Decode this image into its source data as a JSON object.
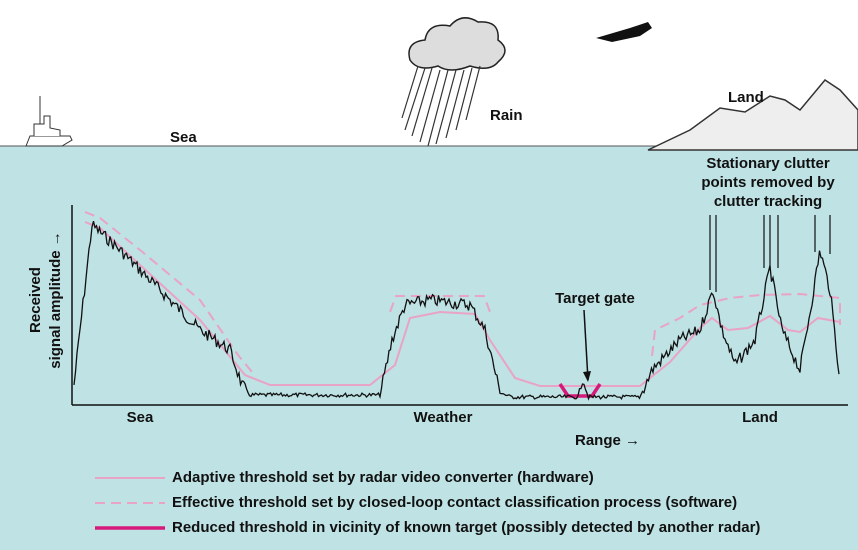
{
  "scene": {
    "sea_label": "Sea",
    "rain_label": "Rain",
    "land_label": "Land"
  },
  "annotations": {
    "clutter_note": [
      "Stationary clutter",
      "points removed by",
      "clutter tracking"
    ],
    "target_gate": "Target gate"
  },
  "axes": {
    "y_label": [
      "Received",
      "signal amplitude →"
    ],
    "x_label": "Range →",
    "regions": [
      "Sea",
      "Weather",
      "Land"
    ]
  },
  "legend": [
    {
      "label": "Adaptive threshold set by radar video converter (hardware)"
    },
    {
      "label": "Effective threshold set by closed-loop contact classification process (software)"
    },
    {
      "label": "Reduced threshold in vicinity of known target (possibly detected by another radar)"
    }
  ]
}
